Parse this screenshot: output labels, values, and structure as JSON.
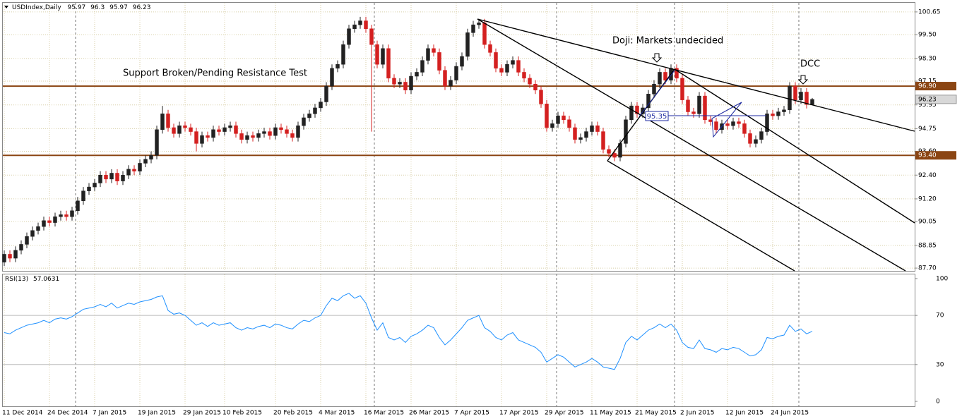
{
  "chart_data": {
    "type": "candlestick",
    "title": "USDIndex,Daily",
    "categories": [
      "11 Dec 2014",
      null,
      null,
      null,
      null,
      null,
      null,
      null,
      "24 Dec 2014",
      null,
      null,
      null,
      null,
      null,
      null,
      null,
      "7 Jan 2015",
      null,
      null,
      null,
      null,
      null,
      null,
      null,
      "19 Jan 2015",
      null,
      null,
      null,
      null,
      null,
      null,
      null,
      "29 Jan 2015",
      null,
      null,
      null,
      null,
      null,
      null,
      "10 Feb 2015",
      null,
      null,
      null,
      null,
      null,
      null,
      null,
      null,
      "20 Feb 2015",
      null,
      null,
      null,
      null,
      null,
      null,
      null,
      "4 Mar 2015",
      null,
      null,
      null,
      null,
      null,
      null,
      null,
      "16 Mar 2015",
      null,
      null,
      null,
      null,
      null,
      null,
      null,
      "26 Mar 2015",
      null,
      null,
      null,
      null,
      null,
      null,
      null,
      "7 Apr 2015",
      null,
      null,
      null,
      null,
      null,
      null,
      null,
      "17 Apr 2015",
      null,
      null,
      null,
      null,
      null,
      null,
      null,
      "29 Apr 2015",
      null,
      null,
      null,
      null,
      null,
      null,
      null,
      "11 May 2015",
      null,
      null,
      null,
      null,
      null,
      null,
      null,
      "21 May 2015",
      null,
      null,
      null,
      null,
      null,
      null,
      null,
      "2 Jun 2015",
      null,
      null,
      null,
      null,
      null,
      null,
      null,
      "12 Jun 2015",
      null,
      null,
      null,
      null,
      null,
      null,
      null,
      "24 Jun 2015",
      null,
      null,
      null,
      null,
      null,
      null,
      null
    ],
    "ohlc": [
      [
        88.0,
        88.6,
        87.8,
        88.4
      ],
      [
        88.4,
        88.6,
        88.0,
        88.2
      ],
      [
        88.2,
        88.8,
        88.0,
        88.6
      ],
      [
        88.6,
        89.1,
        88.4,
        88.9
      ],
      [
        88.9,
        89.5,
        88.7,
        89.3
      ],
      [
        89.3,
        89.8,
        89.1,
        89.6
      ],
      [
        89.6,
        90.0,
        89.4,
        89.8
      ],
      [
        89.8,
        90.3,
        89.6,
        90.1
      ],
      [
        90.1,
        90.3,
        89.8,
        90.0
      ],
      [
        90.0,
        90.5,
        89.8,
        90.3
      ],
      [
        90.3,
        90.6,
        90.1,
        90.4
      ],
      [
        90.4,
        90.6,
        90.1,
        90.3
      ],
      [
        90.3,
        90.8,
        90.1,
        90.6
      ],
      [
        90.6,
        91.3,
        90.4,
        91.1
      ],
      [
        91.1,
        91.8,
        90.9,
        91.6
      ],
      [
        91.6,
        92.0,
        91.4,
        91.8
      ],
      [
        91.8,
        92.2,
        91.6,
        92.0
      ],
      [
        92.0,
        92.6,
        91.8,
        92.4
      ],
      [
        92.4,
        92.6,
        92.0,
        92.2
      ],
      [
        92.2,
        92.7,
        92.0,
        92.5
      ],
      [
        92.5,
        92.7,
        91.9,
        92.1
      ],
      [
        92.1,
        92.6,
        91.9,
        92.4
      ],
      [
        92.4,
        92.9,
        92.2,
        92.7
      ],
      [
        92.7,
        92.9,
        92.4,
        92.6
      ],
      [
        92.6,
        93.2,
        92.4,
        93.0
      ],
      [
        93.0,
        93.4,
        92.8,
        93.2
      ],
      [
        93.2,
        93.6,
        93.0,
        93.4
      ],
      [
        93.4,
        94.9,
        93.2,
        94.7
      ],
      [
        94.7,
        95.9,
        94.5,
        95.5
      ],
      [
        95.5,
        95.7,
        94.6,
        94.8
      ],
      [
        94.8,
        95.0,
        94.3,
        94.5
      ],
      [
        94.5,
        95.1,
        94.3,
        94.9
      ],
      [
        94.9,
        95.1,
        94.6,
        94.8
      ],
      [
        94.8,
        95.0,
        94.4,
        94.6
      ],
      [
        94.6,
        94.8,
        93.6,
        94.0
      ],
      [
        94.0,
        94.6,
        93.8,
        94.4
      ],
      [
        94.4,
        94.6,
        94.1,
        94.3
      ],
      [
        94.3,
        94.9,
        94.1,
        94.7
      ],
      [
        94.7,
        94.9,
        94.4,
        94.6
      ],
      [
        94.6,
        95.0,
        94.4,
        94.8
      ],
      [
        94.8,
        95.1,
        94.6,
        94.9
      ],
      [
        94.9,
        95.1,
        94.3,
        94.5
      ],
      [
        94.5,
        94.7,
        94.0,
        94.2
      ],
      [
        94.2,
        94.6,
        94.0,
        94.4
      ],
      [
        94.4,
        94.6,
        94.1,
        94.3
      ],
      [
        94.3,
        94.7,
        94.1,
        94.5
      ],
      [
        94.5,
        94.8,
        94.3,
        94.6
      ],
      [
        94.6,
        94.8,
        94.2,
        94.4
      ],
      [
        94.4,
        95.0,
        94.2,
        94.8
      ],
      [
        94.8,
        95.0,
        94.5,
        94.7
      ],
      [
        94.7,
        94.9,
        94.3,
        94.5
      ],
      [
        94.5,
        94.7,
        94.1,
        94.3
      ],
      [
        94.3,
        95.1,
        94.1,
        94.9
      ],
      [
        94.9,
        95.5,
        94.7,
        95.3
      ],
      [
        95.3,
        95.7,
        95.1,
        95.5
      ],
      [
        95.5,
        96.0,
        95.3,
        95.8
      ],
      [
        95.8,
        96.3,
        95.6,
        96.1
      ],
      [
        96.1,
        97.1,
        95.9,
        96.9
      ],
      [
        96.9,
        98.0,
        96.7,
        97.8
      ],
      [
        97.8,
        98.2,
        97.6,
        98.0
      ],
      [
        98.0,
        99.2,
        97.8,
        99.0
      ],
      [
        99.0,
        100.0,
        98.8,
        99.8
      ],
      [
        99.8,
        100.2,
        99.6,
        100.0
      ],
      [
        100.0,
        100.4,
        99.8,
        100.2
      ],
      [
        100.2,
        100.4,
        99.6,
        99.8
      ],
      [
        99.8,
        100.0,
        94.6,
        99.0
      ],
      [
        99.0,
        99.2,
        97.8,
        98.0
      ],
      [
        98.0,
        99.0,
        97.8,
        98.8
      ],
      [
        98.8,
        99.0,
        97.1,
        97.3
      ],
      [
        97.3,
        97.5,
        96.8,
        97.0
      ],
      [
        97.0,
        97.3,
        96.8,
        97.1
      ],
      [
        97.1,
        97.3,
        96.5,
        96.7
      ],
      [
        96.7,
        97.6,
        96.5,
        97.4
      ],
      [
        97.4,
        97.8,
        97.2,
        97.6
      ],
      [
        97.6,
        98.4,
        97.4,
        98.2
      ],
      [
        98.2,
        99.0,
        98.0,
        98.8
      ],
      [
        98.8,
        99.0,
        98.4,
        98.6
      ],
      [
        98.6,
        98.8,
        97.5,
        97.7
      ],
      [
        97.7,
        97.9,
        96.7,
        96.9
      ],
      [
        96.9,
        97.4,
        96.7,
        97.2
      ],
      [
        97.2,
        98.1,
        97.0,
        97.9
      ],
      [
        97.9,
        98.6,
        97.7,
        98.4
      ],
      [
        98.4,
        99.8,
        98.2,
        99.6
      ],
      [
        99.6,
        100.2,
        99.4,
        100.0
      ],
      [
        100.0,
        100.3,
        99.8,
        100.1
      ],
      [
        100.1,
        100.3,
        98.8,
        99.0
      ],
      [
        99.0,
        99.2,
        98.4,
        98.6
      ],
      [
        98.6,
        98.8,
        97.6,
        97.8
      ],
      [
        97.8,
        98.0,
        97.4,
        97.6
      ],
      [
        97.6,
        98.2,
        97.4,
        98.0
      ],
      [
        98.0,
        98.4,
        97.8,
        98.2
      ],
      [
        98.2,
        98.4,
        97.4,
        97.6
      ],
      [
        97.6,
        97.8,
        97.1,
        97.3
      ],
      [
        97.3,
        97.5,
        96.8,
        97.0
      ],
      [
        97.0,
        97.2,
        96.5,
        96.7
      ],
      [
        96.7,
        96.9,
        95.8,
        96.0
      ],
      [
        96.0,
        96.2,
        94.6,
        94.8
      ],
      [
        94.8,
        95.2,
        94.6,
        95.0
      ],
      [
        95.0,
        95.6,
        94.8,
        95.4
      ],
      [
        95.4,
        95.6,
        95.0,
        95.2
      ],
      [
        95.2,
        95.4,
        94.6,
        94.8
      ],
      [
        94.8,
        95.0,
        94.0,
        94.2
      ],
      [
        94.2,
        94.5,
        94.0,
        94.3
      ],
      [
        94.3,
        94.8,
        94.1,
        94.6
      ],
      [
        94.6,
        95.1,
        94.4,
        94.9
      ],
      [
        94.9,
        95.1,
        94.4,
        94.6
      ],
      [
        94.6,
        94.8,
        93.5,
        93.7
      ],
      [
        93.7,
        93.9,
        93.3,
        93.5
      ],
      [
        93.5,
        93.7,
        93.1,
        93.3
      ],
      [
        93.3,
        94.2,
        93.1,
        94.0
      ],
      [
        94.0,
        95.4,
        93.8,
        95.2
      ],
      [
        95.2,
        96.1,
        95.0,
        95.9
      ],
      [
        95.9,
        96.1,
        95.3,
        95.5
      ],
      [
        95.5,
        96.0,
        95.3,
        95.8
      ],
      [
        95.8,
        96.7,
        95.6,
        96.5
      ],
      [
        96.5,
        97.2,
        96.3,
        97.0
      ],
      [
        97.0,
        97.8,
        96.8,
        97.6
      ],
      [
        97.6,
        97.8,
        97.0,
        97.2
      ],
      [
        97.2,
        98.0,
        97.0,
        97.8
      ],
      [
        97.8,
        98.0,
        97.1,
        97.3
      ],
      [
        97.3,
        97.5,
        96.0,
        96.2
      ],
      [
        96.2,
        96.4,
        95.4,
        95.6
      ],
      [
        95.6,
        95.8,
        95.3,
        95.5
      ],
      [
        95.5,
        96.6,
        95.3,
        96.4
      ],
      [
        96.4,
        96.6,
        95.0,
        95.2
      ],
      [
        95.2,
        95.4,
        94.9,
        95.1
      ],
      [
        95.1,
        95.3,
        94.5,
        94.7
      ],
      [
        94.7,
        95.2,
        94.5,
        95.0
      ],
      [
        95.0,
        95.2,
        94.7,
        94.9
      ],
      [
        94.9,
        95.3,
        94.7,
        95.1
      ],
      [
        95.1,
        95.3,
        94.8,
        95.0
      ],
      [
        95.0,
        95.2,
        94.3,
        94.5
      ],
      [
        94.5,
        94.7,
        93.8,
        94.0
      ],
      [
        94.0,
        94.4,
        93.8,
        94.2
      ],
      [
        94.2,
        94.8,
        94.0,
        94.6
      ],
      [
        94.6,
        95.7,
        94.4,
        95.5
      ],
      [
        95.5,
        95.7,
        95.2,
        95.4
      ],
      [
        95.4,
        95.8,
        95.2,
        95.6
      ],
      [
        95.6,
        95.9,
        95.4,
        95.7
      ],
      [
        95.7,
        97.1,
        95.5,
        96.9
      ],
      [
        96.9,
        97.1,
        96.0,
        96.2
      ],
      [
        96.2,
        96.8,
        96.0,
        96.6
      ],
      [
        96.6,
        96.8,
        95.77,
        95.97
      ],
      [
        95.97,
        96.3,
        95.97,
        96.23
      ]
    ],
    "up_color": "#222222",
    "down_color": "#d42020",
    "ylim": [
      87.56,
      101.11
    ],
    "yticks": [
      {
        "value": 100.65,
        "label": "100.65"
      },
      {
        "value": 99.5,
        "label": "99.50"
      },
      {
        "value": 98.3,
        "label": "98.30"
      },
      97.15,
      95.95,
      94.75,
      {
        "value": 93.6,
        "label": "93.60"
      },
      {
        "value": 92.4,
        "label": "92.40"
      },
      {
        "value": 91.2,
        "label": "91.20"
      },
      90.05,
      88.85,
      {
        "value": 87.7,
        "label": "87.70"
      }
    ],
    "grid": true,
    "hlines": [
      {
        "value": 96.9,
        "label": "96.90"
      },
      {
        "value": 93.4,
        "label": "93.40"
      }
    ],
    "hline_color": "#8b4513",
    "annotations": [
      "Support Broken/Pending Resistance Test",
      "Doji: Markets undecided",
      "DCC",
      95.35
    ],
    "rsi_label": "RSI(13)",
    "rsi_color": "#1e90ff",
    "rsi": [
      56,
      55,
      58,
      60,
      62,
      63,
      64,
      66,
      64,
      67,
      68,
      67,
      69,
      72,
      75,
      76,
      77,
      79,
      77,
      80,
      76,
      78,
      80,
      79,
      81,
      82,
      83,
      85,
      86,
      74,
      71,
      72,
      70,
      66,
      62,
      64,
      61,
      64,
      62,
      63,
      64,
      60,
      58,
      60,
      59,
      61,
      62,
      60,
      63,
      62,
      60,
      59,
      63,
      66,
      65,
      68,
      70,
      78,
      84,
      82,
      86,
      88,
      84,
      86,
      80,
      68,
      58,
      64,
      52,
      50,
      52,
      48,
      53,
      55,
      58,
      62,
      60,
      52,
      46,
      50,
      55,
      60,
      66,
      68,
      70,
      60,
      57,
      52,
      50,
      54,
      56,
      50,
      48,
      46,
      44,
      40,
      32,
      35,
      38,
      36,
      32,
      28,
      30,
      32,
      35,
      32,
      28,
      27,
      26,
      35,
      48,
      53,
      50,
      54,
      58,
      60,
      63,
      60,
      63,
      58,
      48,
      44,
      43,
      50,
      43,
      42,
      40,
      43,
      42,
      44,
      43,
      40,
      37,
      38,
      42,
      52,
      51,
      53,
      54,
      62,
      57,
      59,
      55,
      57.0631
    ],
    "rsi_ylim": [
      -4,
      103.4
    ],
    "rsi_yticks": [
      100,
      70,
      30,
      0
    ]
  }
}
